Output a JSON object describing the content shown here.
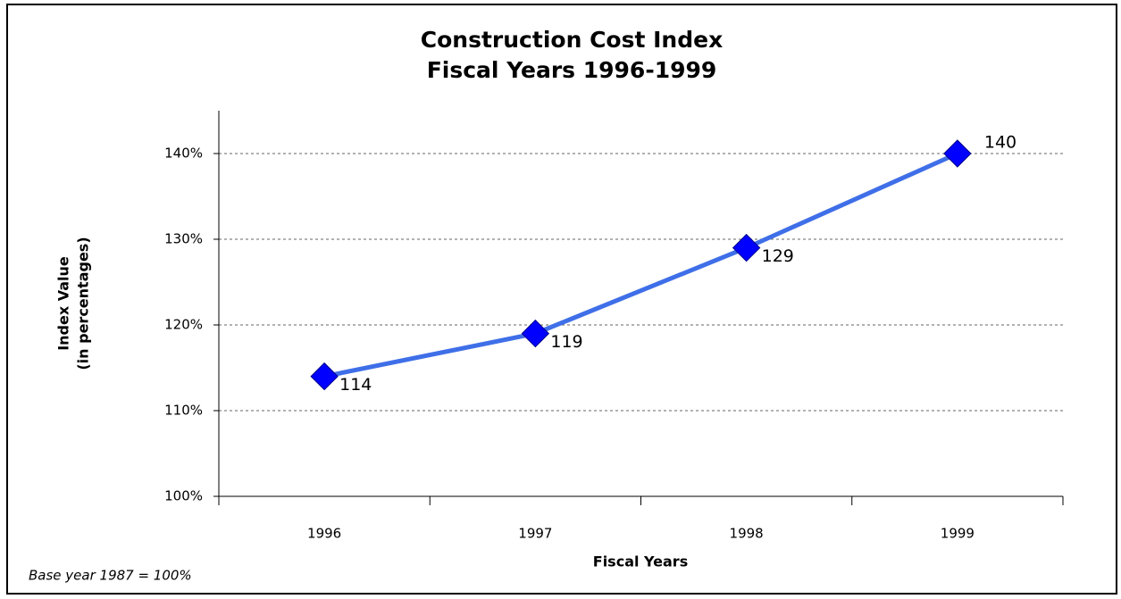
{
  "chart_data": {
    "type": "line",
    "title": "Construction Cost Index",
    "subtitle": "Fiscal Years 1996-1999",
    "ylabel": [
      "Index Value",
      "(in percentages)"
    ],
    "xlabel": "Fiscal Years",
    "note": "Base year 1987 = 100%",
    "categories": [
      "1996",
      "1997",
      "1998",
      "1999"
    ],
    "series": [
      {
        "color": "#3f6fe8",
        "marker_color": "#0000ff",
        "values": [
          114,
          119,
          129,
          140
        ]
      }
    ],
    "ylim": [
      100,
      145
    ],
    "yticks": [
      {
        "value": 100,
        "label": "100%"
      },
      {
        "value": 110,
        "label": "110%"
      },
      {
        "value": 120,
        "label": "120%"
      },
      {
        "value": 130,
        "label": "130%"
      },
      {
        "value": 140,
        "label": "140%"
      }
    ],
    "grid": true
  }
}
